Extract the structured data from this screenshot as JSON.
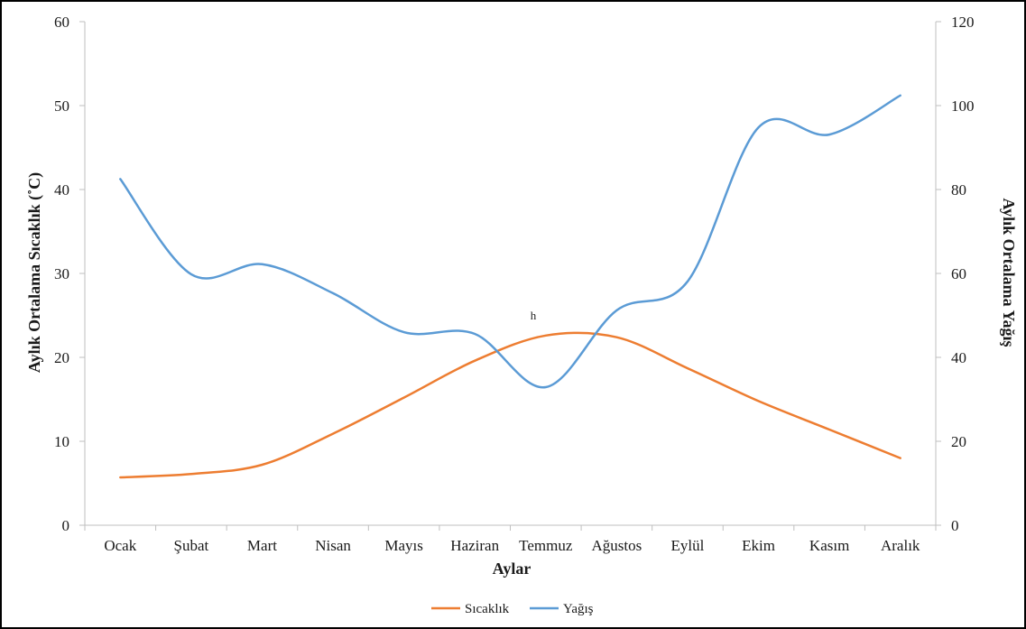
{
  "chart_data": {
    "type": "line",
    "categories": [
      "Ocak",
      "Şubat",
      "Mart",
      "Nisan",
      "Mayıs",
      "Haziran",
      "Temmuz",
      "Ağustos",
      "Eylül",
      "Ekim",
      "Kasım",
      "Aralık"
    ],
    "series": [
      {
        "name": "Sıcaklık",
        "axis": "left",
        "color": "#ED7D31",
        "values": [
          5.7,
          6.1,
          7.2,
          10.9,
          15.2,
          19.6,
          22.6,
          22.4,
          18.7,
          14.8,
          11.4,
          8.0
        ]
      },
      {
        "name": "Yağış",
        "axis": "right",
        "color": "#5B9BD5",
        "values": [
          82.5,
          59.8,
          62.2,
          55.3,
          46.0,
          45.6,
          32.9,
          51.2,
          58.1,
          94.8,
          93.1,
          102.4
        ]
      }
    ],
    "xlabel": "Aylar",
    "ylabel": "Aylık Ortalama Sıcaklık (˚C)",
    "y2label": "Aylık Ortalama Yağış",
    "ylim": [
      0,
      60
    ],
    "y2lim": [
      0,
      120
    ],
    "yticks": [
      "0",
      "10",
      "20",
      "30",
      "40",
      "50",
      "60"
    ],
    "y2ticks": [
      "0",
      "20",
      "40",
      "60",
      "80",
      "100",
      "120"
    ],
    "annotation": "h",
    "grid": false,
    "legend_position": "bottom"
  }
}
